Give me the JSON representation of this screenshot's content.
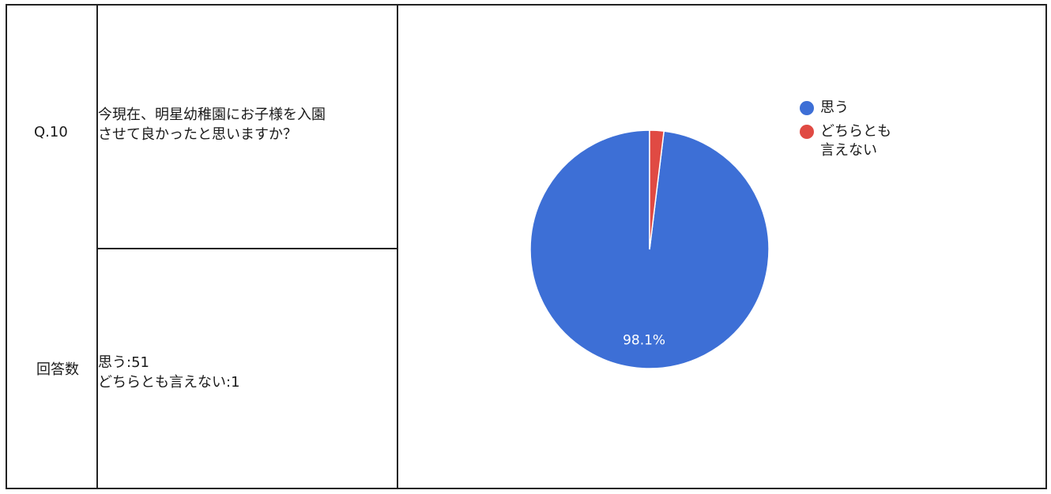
{
  "table": {
    "question_number": "Q.10",
    "question_text": "今現在、明星幼稚園にお子様を入園\nさせて良かったと思いますか？",
    "count_label": "回答数",
    "counts_text": "思う:51\nどちらとも言えない:1"
  },
  "chart_data": {
    "type": "pie",
    "categories": [
      "思う",
      "どちらとも\n言えない"
    ],
    "values": [
      51,
      1
    ],
    "colors": [
      "#3d6fd6",
      "#e04a43"
    ],
    "data_labels": [
      "98.1%",
      ""
    ],
    "legend_position": "right"
  }
}
